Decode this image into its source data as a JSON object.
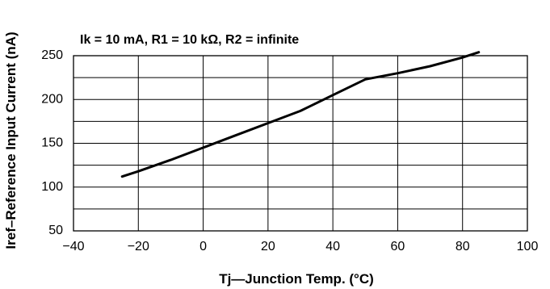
{
  "chart_data": {
    "type": "line",
    "title": "Ik = 10 mA, R1 = 10 kΩ, R2 = infinite",
    "xlabel": "Tj—Junction Temp. (°C)",
    "ylabel": "Iref–Reference Input Current (nA)",
    "xlim": [
      -40,
      100
    ],
    "ylim": [
      50,
      250
    ],
    "x_ticks": [
      -40,
      -20,
      0,
      20,
      40,
      60,
      80,
      100
    ],
    "y_ticks": [
      50,
      100,
      150,
      200,
      250
    ],
    "y_grid": [
      50,
      75,
      100,
      125,
      150,
      175,
      200,
      225,
      250
    ],
    "grid": true,
    "series": [
      {
        "color": "#000000",
        "x": [
          -25,
          -20,
          -10,
          0,
          10,
          20,
          30,
          40,
          50,
          60,
          70,
          80,
          85
        ],
        "y": [
          112,
          118,
          131,
          145,
          159,
          173,
          187,
          205,
          223,
          230,
          238,
          248,
          254
        ]
      }
    ]
  }
}
